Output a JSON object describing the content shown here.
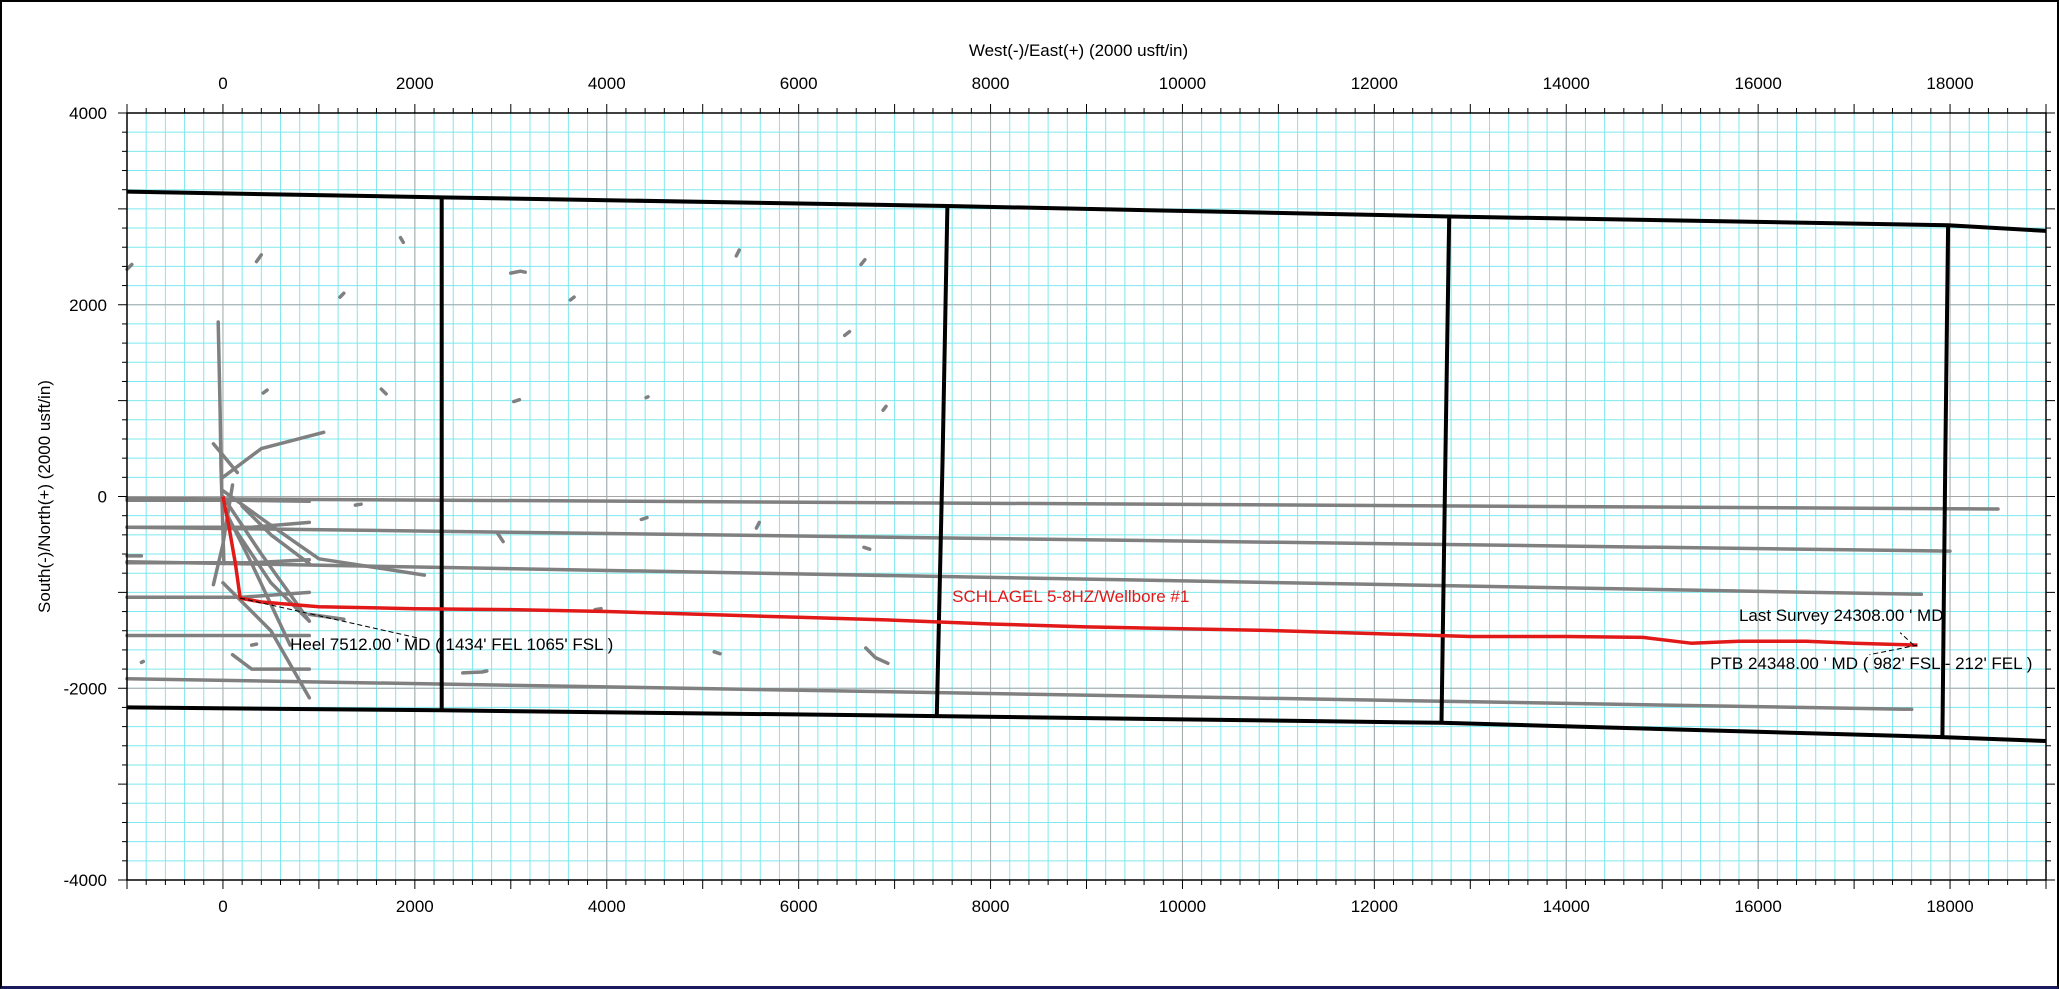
{
  "chart_data": {
    "type": "line",
    "title": "",
    "xlabel": "West(-)/East(+) (2000 usft/in)",
    "ylabel": "South(-)/North(+) (2000 usft/in)",
    "xlim": [
      -1000,
      19000
    ],
    "ylim": [
      -4000,
      4000
    ],
    "x_ticks": [
      0,
      2000,
      4000,
      6000,
      8000,
      10000,
      12000,
      14000,
      16000,
      18000
    ],
    "y_ticks": [
      -4000,
      -2000,
      0,
      2000,
      4000
    ],
    "grid": true,
    "colors": {
      "grid_minor": "#7fe8ee",
      "grid_major": "#a8a8a8",
      "section_lines": "#000000",
      "offset_wells": "#808080",
      "wellbore": "#e11919",
      "label_text": "#000000"
    },
    "section_lines": [
      {
        "x": [
          -1000,
          2280,
          7550,
          12780,
          17980,
          19000
        ],
        "y": [
          3180,
          3120,
          3030,
          2920,
          2830,
          2770
        ]
      },
      {
        "x": [
          -1000,
          2280,
          7440,
          12700,
          17920,
          19000
        ],
        "y": [
          -2200,
          -2230,
          -2290,
          -2360,
          -2510,
          -2550
        ]
      },
      {
        "x": [
          2280,
          2280
        ],
        "y": [
          3120,
          -2230
        ]
      },
      {
        "x": [
          7550,
          7500,
          7440
        ],
        "y": [
          3030,
          400,
          -2290
        ]
      },
      {
        "x": [
          12780,
          12740,
          12700
        ],
        "y": [
          2920,
          400,
          -2360
        ]
      },
      {
        "x": [
          17980,
          17950,
          17920
        ],
        "y": [
          2830,
          400,
          -2510
        ]
      }
    ],
    "offset_wells": [
      {
        "x": [
          -1000,
          18500
        ],
        "y": [
          -20,
          -130
        ]
      },
      {
        "x": [
          -1000,
          18000
        ],
        "y": [
          -320,
          -570
        ]
      },
      {
        "x": [
          -1000,
          17700
        ],
        "y": [
          -680,
          -1020
        ]
      },
      {
        "x": [
          -1000,
          17600
        ],
        "y": [
          -1900,
          -2220
        ]
      },
      {
        "x": [
          -1000,
          900
        ],
        "y": [
          -1450,
          -1450
        ]
      },
      {
        "x": [
          -1000,
          200,
          900
        ],
        "y": [
          -1050,
          -1050,
          -1000
        ]
      },
      {
        "x": [
          -1000,
          300,
          900
        ],
        "y": [
          -320,
          -320,
          -270
        ]
      },
      {
        "x": [
          -1000,
          300,
          900
        ],
        "y": [
          -690,
          -690,
          -660
        ]
      },
      {
        "x": [
          -1000,
          200,
          900
        ],
        "y": [
          -40,
          -40,
          -50
        ]
      },
      {
        "x": [
          -50,
          -30,
          -20,
          10
        ],
        "y": [
          1820,
          900,
          300,
          -700
        ]
      },
      {
        "x": [
          -100,
          0,
          100
        ],
        "y": [
          -920,
          -500,
          120
        ]
      },
      {
        "x": [
          0,
          400,
          1050
        ],
        "y": [
          200,
          500,
          670
        ]
      },
      {
        "x": [
          0,
          500,
          1000,
          2100
        ],
        "y": [
          60,
          -300,
          -650,
          -820
        ]
      },
      {
        "x": [
          0,
          400,
          900
        ],
        "y": [
          0,
          -600,
          -1300
        ]
      },
      {
        "x": [
          0,
          300,
          700
        ],
        "y": [
          -100,
          -700,
          -1550
        ]
      },
      {
        "x": [
          100,
          500,
          900
        ],
        "y": [
          -300,
          -900,
          -1300
        ]
      },
      {
        "x": [
          200,
          500,
          900
        ],
        "y": [
          -100,
          -400,
          -700
        ]
      },
      {
        "x": [
          100,
          300,
          900
        ],
        "y": [
          -1650,
          -1800,
          -1800
        ]
      },
      {
        "x": [
          0,
          500,
          900
        ],
        "y": [
          -900,
          -1400,
          -2100
        ]
      },
      {
        "x": [
          -100,
          150
        ],
        "y": [
          550,
          250
        ]
      },
      {
        "x": [
          350,
          400
        ],
        "y": [
          2450,
          2520
        ]
      },
      {
        "x": [
          1850,
          1880
        ],
        "y": [
          2700,
          2650
        ]
      },
      {
        "x": [
          1220,
          1260
        ],
        "y": [
          2080,
          2120
        ]
      },
      {
        "x": [
          3000,
          3100,
          3150
        ],
        "y": [
          2330,
          2350,
          2340
        ]
      },
      {
        "x": [
          3620,
          3660
        ],
        "y": [
          2050,
          2080
        ]
      },
      {
        "x": [
          5350,
          5380
        ],
        "y": [
          2510,
          2570
        ]
      },
      {
        "x": [
          6650,
          6690
        ],
        "y": [
          2420,
          2470
        ]
      },
      {
        "x": [
          6480,
          6530
        ],
        "y": [
          1680,
          1720
        ]
      },
      {
        "x": [
          6880,
          6910
        ],
        "y": [
          900,
          940
        ]
      },
      {
        "x": [
          420,
          460
        ],
        "y": [
          1080,
          1110
        ]
      },
      {
        "x": [
          1650,
          1700
        ],
        "y": [
          1120,
          1070
        ]
      },
      {
        "x": [
          3030,
          3090
        ],
        "y": [
          990,
          1010
        ]
      },
      {
        "x": [
          4410,
          4430
        ],
        "y": [
          1030,
          1040
        ]
      },
      {
        "x": [
          1380,
          1440
        ],
        "y": [
          -90,
          -80
        ]
      },
      {
        "x": [
          2860,
          2920
        ],
        "y": [
          -380,
          -470
        ]
      },
      {
        "x": [
          4360,
          4420
        ],
        "y": [
          -240,
          -220
        ]
      },
      {
        "x": [
          5560,
          5590
        ],
        "y": [
          -330,
          -270
        ]
      },
      {
        "x": [
          6680,
          6740
        ],
        "y": [
          -530,
          -550
        ]
      },
      {
        "x": [
          3880,
          3940
        ],
        "y": [
          -1180,
          -1170
        ]
      },
      {
        "x": [
          5120,
          5180
        ],
        "y": [
          -1620,
          -1640
        ]
      },
      {
        "x": [
          6700,
          6800,
          6930
        ],
        "y": [
          -1580,
          -1680,
          -1740
        ]
      },
      {
        "x": [
          2500,
          2700,
          2750
        ],
        "y": [
          -1840,
          -1830,
          -1820
        ]
      },
      {
        "x": [
          300,
          350
        ],
        "y": [
          -1550,
          -1540
        ]
      },
      {
        "x": [
          -850,
          -830
        ],
        "y": [
          -1730,
          -1720
        ]
      },
      {
        "x": [
          -1000,
          -950
        ],
        "y": [
          2370,
          2420
        ]
      },
      {
        "x": [
          -1000,
          -850
        ],
        "y": [
          -620,
          -620
        ]
      },
      {
        "x": [
          900,
          1260
        ],
        "y": [
          -1230,
          -1280
        ]
      }
    ],
    "wellbore": {
      "name": "SCHLAGEL 5-8HZ/Wellbore #1",
      "x": [
        0,
        60,
        130,
        180,
        400,
        1000,
        2000,
        3000,
        4000,
        5000,
        6000,
        7000,
        7500,
        8000,
        9000,
        10000,
        11000,
        12000,
        13000,
        14000,
        14800,
        15300,
        15800,
        16500,
        17000,
        17660
      ],
      "y": [
        0,
        -300,
        -700,
        -1060,
        -1100,
        -1150,
        -1170,
        -1180,
        -1200,
        -1230,
        -1260,
        -1290,
        -1310,
        -1330,
        -1360,
        -1380,
        -1400,
        -1430,
        -1460,
        -1460,
        -1470,
        -1530,
        -1510,
        -1510,
        -1530,
        -1550
      ]
    },
    "annotations": [
      {
        "text": "Heel 7512.00 ' MD ( 1434' FEL 1065' FSL )",
        "x": 180,
        "y": -1060
      },
      {
        "text": "Last Survey 24308.00 ' MD",
        "x": 17620,
        "y": -1550
      },
      {
        "text": "PTB 24348.00 ' MD ( 982' FSL - 212' FEL )",
        "x": 17660,
        "y": -1550
      }
    ]
  }
}
